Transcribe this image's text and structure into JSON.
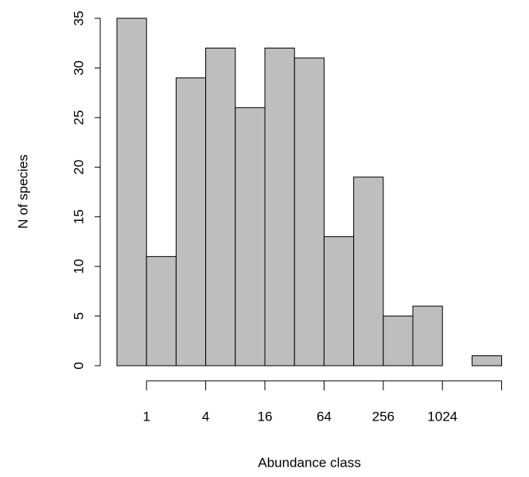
{
  "chart_data": {
    "type": "bar",
    "x_label": "Abundance class",
    "y_label": "N of species",
    "categories": [
      null,
      null,
      null,
      null,
      null,
      null,
      null,
      null,
      null,
      null,
      null,
      null,
      null
    ],
    "values": [
      35,
      11,
      29,
      32,
      26,
      32,
      31,
      13,
      19,
      5,
      6,
      0,
      1
    ],
    "color": "#bebebe",
    "ylim": [
      0,
      35
    ],
    "yticks": [
      0,
      5,
      10,
      15,
      20,
      25,
      30,
      35
    ],
    "xticks": [
      1,
      4,
      16,
      64,
      256,
      1024,
      null
    ]
  }
}
